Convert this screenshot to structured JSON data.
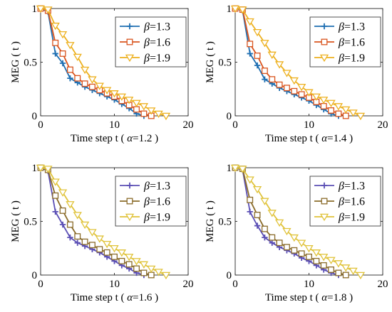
{
  "figure": {
    "ylabel": "MEG ( t )",
    "xlabel_prefix": "Time step t ( ",
    "xlabel_suffix": " )",
    "alpha_symbol": "α",
    "beta_symbol": "β",
    "xlim": [
      0,
      20
    ],
    "ylim": [
      0,
      1
    ],
    "xticks": [
      "0",
      "10",
      "20"
    ],
    "yticks": [
      "0",
      "0.5",
      "1"
    ]
  },
  "chart_data": [
    {
      "type": "line",
      "alpha": "=1.2",
      "xlim": [
        0,
        20
      ],
      "ylim": [
        0,
        1
      ],
      "grid": false,
      "legend_position": "top-right",
      "series": [
        {
          "name": "=1.3",
          "color": "#1f6fb2",
          "marker": "plus",
          "x": [
            0,
            1,
            2,
            3,
            4,
            5,
            6,
            7,
            8,
            9,
            10,
            11,
            12,
            13,
            14
          ],
          "y": [
            1.0,
            0.97,
            0.58,
            0.49,
            0.35,
            0.31,
            0.27,
            0.24,
            0.21,
            0.18,
            0.15,
            0.11,
            0.07,
            0.02,
            0.0
          ]
        },
        {
          "name": "=1.6",
          "color": "#d9541e",
          "marker": "square",
          "x": [
            0,
            1,
            2,
            3,
            4,
            5,
            6,
            7,
            8,
            9,
            10,
            11,
            12,
            13,
            14,
            15
          ],
          "y": [
            1.0,
            0.98,
            0.68,
            0.58,
            0.43,
            0.35,
            0.3,
            0.27,
            0.24,
            0.21,
            0.18,
            0.14,
            0.1,
            0.06,
            0.02,
            0.0
          ]
        },
        {
          "name": "=1.9",
          "color": "#edb120",
          "marker": "triangle-down",
          "x": [
            0,
            1,
            2,
            3,
            4,
            5,
            6,
            7,
            8,
            9,
            10,
            11,
            12,
            13,
            14,
            15,
            16,
            17
          ],
          "y": [
            1.0,
            0.99,
            0.84,
            0.76,
            0.66,
            0.55,
            0.43,
            0.34,
            0.28,
            0.24,
            0.21,
            0.18,
            0.15,
            0.12,
            0.09,
            0.05,
            0.02,
            0.0
          ]
        }
      ]
    },
    {
      "type": "line",
      "alpha": "=1.4",
      "xlim": [
        0,
        20
      ],
      "ylim": [
        0,
        1
      ],
      "grid": false,
      "legend_position": "top-right",
      "series": [
        {
          "name": "=1.3",
          "color": "#1f6fb2",
          "marker": "plus",
          "x": [
            0,
            1,
            2,
            3,
            4,
            5,
            6,
            7,
            8,
            9,
            10,
            11,
            12,
            13,
            14
          ],
          "y": [
            1.0,
            0.98,
            0.58,
            0.47,
            0.34,
            0.3,
            0.26,
            0.23,
            0.2,
            0.17,
            0.14,
            0.1,
            0.06,
            0.02,
            0.0
          ]
        },
        {
          "name": "=1.6",
          "color": "#d9541e",
          "marker": "square",
          "x": [
            0,
            1,
            2,
            3,
            4,
            5,
            6,
            7,
            8,
            9,
            10,
            11,
            12,
            13,
            14,
            15
          ],
          "y": [
            1.0,
            0.99,
            0.67,
            0.56,
            0.42,
            0.34,
            0.29,
            0.26,
            0.23,
            0.2,
            0.17,
            0.13,
            0.09,
            0.05,
            0.02,
            0.0
          ]
        },
        {
          "name": "=1.9",
          "color": "#edb120",
          "marker": "triangle-down",
          "x": [
            0,
            1,
            2,
            3,
            4,
            5,
            6,
            7,
            8,
            9,
            10,
            11,
            12,
            13,
            14,
            15,
            16,
            17
          ],
          "y": [
            1.0,
            0.99,
            0.88,
            0.78,
            0.68,
            0.57,
            0.48,
            0.4,
            0.33,
            0.27,
            0.22,
            0.18,
            0.15,
            0.12,
            0.09,
            0.06,
            0.03,
            0.0
          ]
        }
      ]
    },
    {
      "type": "line",
      "alpha": "=1.6",
      "xlim": [
        0,
        20
      ],
      "ylim": [
        0,
        1
      ],
      "grid": false,
      "legend_position": "top-right",
      "series": [
        {
          "name": "=1.3",
          "color": "#5b4fb5",
          "marker": "plus",
          "x": [
            0,
            1,
            2,
            3,
            4,
            5,
            6,
            7,
            8,
            9,
            10,
            11,
            12,
            13,
            14
          ],
          "y": [
            1.0,
            0.97,
            0.59,
            0.47,
            0.35,
            0.3,
            0.27,
            0.24,
            0.21,
            0.17,
            0.13,
            0.09,
            0.06,
            0.02,
            0.0
          ]
        },
        {
          "name": "=1.6",
          "color": "#8a6b2a",
          "marker": "square",
          "x": [
            0,
            1,
            2,
            3,
            4,
            5,
            6,
            7,
            8,
            9,
            10,
            11,
            12,
            13,
            14,
            15
          ],
          "y": [
            1.0,
            0.98,
            0.74,
            0.6,
            0.47,
            0.36,
            0.31,
            0.28,
            0.24,
            0.21,
            0.17,
            0.13,
            0.1,
            0.06,
            0.02,
            0.0
          ]
        },
        {
          "name": "=1.9",
          "color": "#e0c33a",
          "marker": "triangle-down",
          "x": [
            0,
            1,
            2,
            3,
            4,
            5,
            6,
            7,
            8,
            9,
            10,
            11,
            12,
            13,
            14,
            15,
            16,
            17
          ],
          "y": [
            1.0,
            0.99,
            0.87,
            0.77,
            0.66,
            0.56,
            0.47,
            0.4,
            0.34,
            0.29,
            0.25,
            0.21,
            0.17,
            0.13,
            0.1,
            0.06,
            0.03,
            0.0
          ]
        }
      ]
    },
    {
      "type": "line",
      "alpha": "=1.8",
      "xlim": [
        0,
        20
      ],
      "ylim": [
        0,
        1
      ],
      "grid": false,
      "legend_position": "top-right",
      "series": [
        {
          "name": "=1.3",
          "color": "#5b4fb5",
          "marker": "plus",
          "x": [
            0,
            1,
            2,
            3,
            4,
            5,
            6,
            7,
            8,
            9,
            10,
            11,
            12,
            13,
            14
          ],
          "y": [
            1.0,
            0.98,
            0.59,
            0.46,
            0.35,
            0.3,
            0.26,
            0.23,
            0.2,
            0.16,
            0.13,
            0.09,
            0.05,
            0.02,
            0.0
          ]
        },
        {
          "name": "=1.6",
          "color": "#8a6b2a",
          "marker": "square",
          "x": [
            0,
            1,
            2,
            3,
            4,
            5,
            6,
            7,
            8,
            9,
            10,
            11,
            12,
            13,
            14,
            15
          ],
          "y": [
            1.0,
            0.99,
            0.7,
            0.56,
            0.43,
            0.35,
            0.3,
            0.26,
            0.23,
            0.2,
            0.17,
            0.13,
            0.09,
            0.05,
            0.02,
            0.0
          ]
        },
        {
          "name": "=1.9",
          "color": "#e0c33a",
          "marker": "triangle-down",
          "x": [
            0,
            1,
            2,
            3,
            4,
            5,
            6,
            7,
            8,
            9,
            10,
            11,
            12,
            13,
            14,
            15,
            16,
            17
          ],
          "y": [
            1.0,
            0.99,
            0.89,
            0.8,
            0.69,
            0.58,
            0.49,
            0.41,
            0.35,
            0.3,
            0.25,
            0.21,
            0.17,
            0.14,
            0.11,
            0.07,
            0.04,
            0.0
          ]
        }
      ]
    }
  ]
}
